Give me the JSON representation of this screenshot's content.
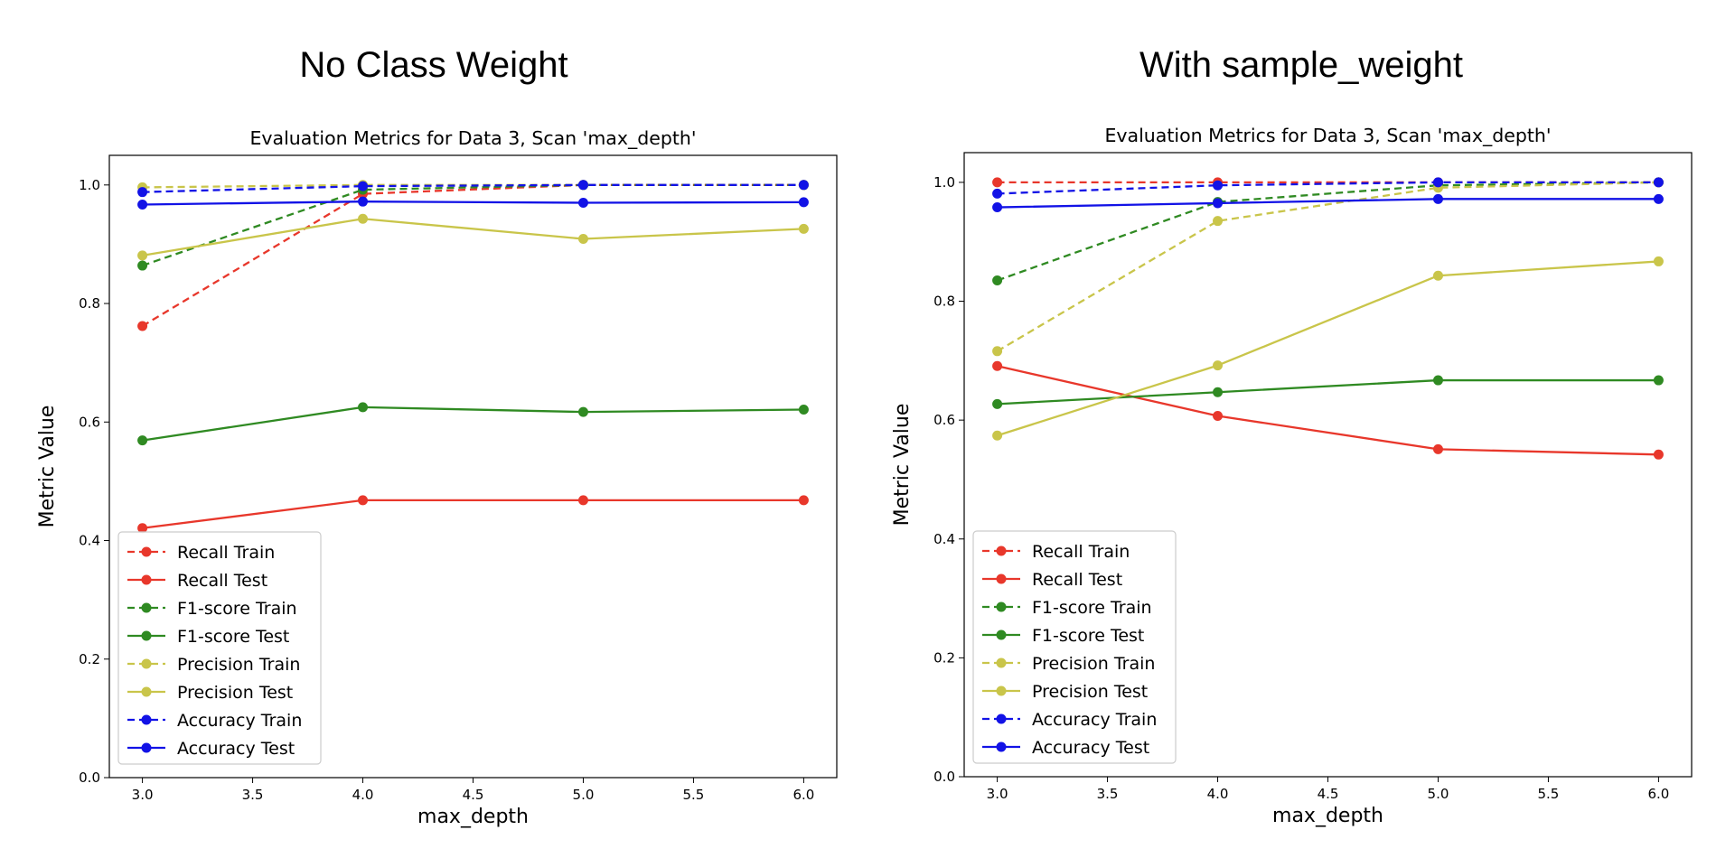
{
  "headers": {
    "left": "No Class Weight",
    "right": "With sample_weight"
  },
  "colors": {
    "recall": "#e8372b",
    "f1": "#2f8a22",
    "precision": "#c9c54a",
    "accuracy": "#1212e6"
  },
  "chart_data": [
    {
      "type": "line",
      "title": "Evaluation Metrics for Data 3, Scan 'max_depth'",
      "xlabel": "max_depth",
      "ylabel": "Metric Value",
      "xlim": [
        2.85,
        6.15
      ],
      "ylim": [
        0.0,
        1.05
      ],
      "xticks": [
        "3.0",
        "3.5",
        "4.0",
        "4.5",
        "5.0",
        "5.5",
        "6.0"
      ],
      "yticks": [
        "0.0",
        "0.2",
        "0.4",
        "0.6",
        "0.8",
        "1.0"
      ],
      "legend_position": "lower-left",
      "x": [
        3.0,
        4.0,
        5.0,
        6.0
      ],
      "series": [
        {
          "name": "Recall Train",
          "style": "dashed",
          "color_key": "recall",
          "values": [
            0.762,
            0.985,
            1.0,
            1.0
          ]
        },
        {
          "name": "Recall Test",
          "style": "solid",
          "color_key": "recall",
          "values": [
            0.421,
            0.468,
            0.468,
            0.468
          ]
        },
        {
          "name": "F1-score Train",
          "style": "dashed",
          "color_key": "f1",
          "values": [
            0.864,
            0.992,
            1.0,
            1.0
          ]
        },
        {
          "name": "F1-score Test",
          "style": "solid",
          "color_key": "f1",
          "values": [
            0.569,
            0.625,
            0.617,
            0.621
          ]
        },
        {
          "name": "Precision Train",
          "style": "dashed",
          "color_key": "precision",
          "values": [
            0.996,
            1.0,
            1.0,
            1.0
          ]
        },
        {
          "name": "Precision Test",
          "style": "solid",
          "color_key": "precision",
          "values": [
            0.881,
            0.943,
            0.909,
            0.926
          ]
        },
        {
          "name": "Accuracy Train",
          "style": "dashed",
          "color_key": "accuracy",
          "values": [
            0.988,
            0.998,
            1.0,
            1.0
          ]
        },
        {
          "name": "Accuracy Test",
          "style": "solid",
          "color_key": "accuracy",
          "values": [
            0.967,
            0.972,
            0.97,
            0.971
          ]
        }
      ]
    },
    {
      "type": "line",
      "title": "Evaluation Metrics for Data 3, Scan 'max_depth'",
      "xlabel": "max_depth",
      "ylabel": "Metric Value",
      "xlim": [
        2.85,
        6.15
      ],
      "ylim": [
        0.0,
        1.05
      ],
      "xticks": [
        "3.0",
        "3.5",
        "4.0",
        "4.5",
        "5.0",
        "5.5",
        "6.0"
      ],
      "yticks": [
        "0.0",
        "0.2",
        "0.4",
        "0.6",
        "0.8",
        "1.0"
      ],
      "legend_position": "lower-left",
      "x": [
        3.0,
        4.0,
        5.0,
        6.0
      ],
      "series": [
        {
          "name": "Recall Train",
          "style": "dashed",
          "color_key": "recall",
          "values": [
            1.0,
            1.0,
            1.0,
            1.0
          ]
        },
        {
          "name": "Recall Test",
          "style": "solid",
          "color_key": "recall",
          "values": [
            0.691,
            0.607,
            0.551,
            0.542
          ]
        },
        {
          "name": "F1-score Train",
          "style": "dashed",
          "color_key": "f1",
          "values": [
            0.835,
            0.967,
            0.995,
            1.0
          ]
        },
        {
          "name": "F1-score Test",
          "style": "solid",
          "color_key": "f1",
          "values": [
            0.627,
            0.647,
            0.667,
            0.667
          ]
        },
        {
          "name": "Precision Train",
          "style": "dashed",
          "color_key": "precision",
          "values": [
            0.716,
            0.935,
            0.991,
            1.0
          ]
        },
        {
          "name": "Precision Test",
          "style": "solid",
          "color_key": "precision",
          "values": [
            0.574,
            0.692,
            0.843,
            0.867
          ]
        },
        {
          "name": "Accuracy Train",
          "style": "dashed",
          "color_key": "accuracy",
          "values": [
            0.981,
            0.995,
            1.0,
            1.0
          ]
        },
        {
          "name": "Accuracy Test",
          "style": "solid",
          "color_key": "accuracy",
          "values": [
            0.958,
            0.965,
            0.972,
            0.972
          ]
        }
      ]
    }
  ]
}
